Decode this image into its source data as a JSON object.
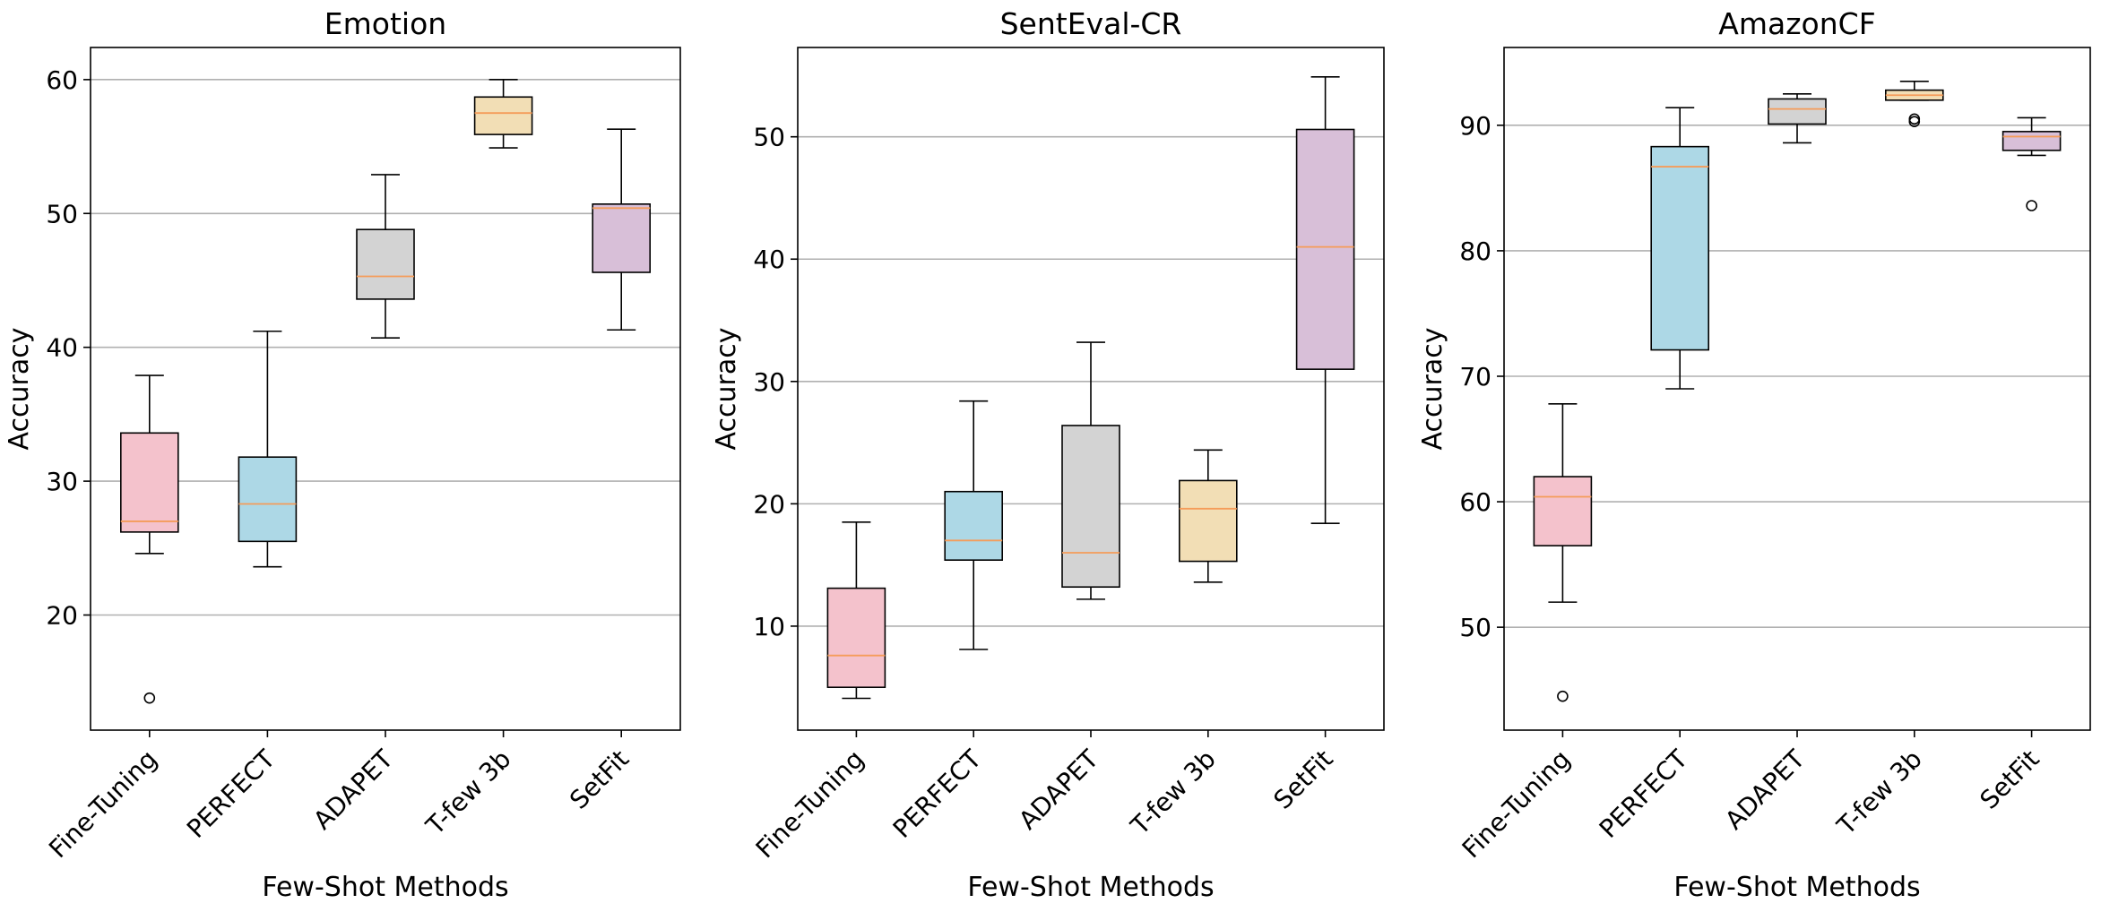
{
  "chart_data": [
    {
      "type": "box",
      "title": "Emotion",
      "xlabel": "Few-Shot Methods",
      "ylabel": "Accuracy",
      "ylim": [
        11.4,
        62.4
      ],
      "yticks": [
        20,
        30,
        40,
        50,
        60
      ],
      "grid": "horizontal",
      "categories": [
        "Fine-Tuning",
        "PERFECT",
        "ADAPET",
        "T-few 3b",
        "SetFit"
      ],
      "colors": [
        "#f4c2cc",
        "#add8e6",
        "#d3d3d3",
        "#f2deb5",
        "#d8bfd8"
      ],
      "median_color": "#f59c5a",
      "boxes": [
        {
          "whislo": 24.6,
          "q1": 26.2,
          "med": 27.0,
          "q3": 33.6,
          "whishi": 37.9,
          "fliers": [
            13.8
          ]
        },
        {
          "whislo": 23.6,
          "q1": 25.5,
          "med": 28.3,
          "q3": 31.8,
          "whishi": 41.2,
          "fliers": []
        },
        {
          "whislo": 40.7,
          "q1": 43.6,
          "med": 45.3,
          "q3": 48.8,
          "whishi": 52.9,
          "fliers": []
        },
        {
          "whislo": 54.9,
          "q1": 55.9,
          "med": 57.5,
          "q3": 58.7,
          "whishi": 60.0,
          "fliers": []
        },
        {
          "whislo": 41.3,
          "q1": 45.6,
          "med": 50.4,
          "q3": 50.7,
          "whishi": 56.3,
          "fliers": []
        }
      ]
    },
    {
      "type": "box",
      "title": "SentEval-CR",
      "xlabel": "Few-Shot Methods",
      "ylabel": "Accuracy",
      "ylim": [
        1.5,
        57.3
      ],
      "yticks": [
        10,
        20,
        30,
        40,
        50
      ],
      "grid": "horizontal",
      "categories": [
        "Fine-Tuning",
        "PERFECT",
        "ADAPET",
        "T-few 3b",
        "SetFit"
      ],
      "colors": [
        "#f4c2cc",
        "#add8e6",
        "#d3d3d3",
        "#f2deb5",
        "#d8bfd8"
      ],
      "median_color": "#f59c5a",
      "boxes": [
        {
          "whislo": 4.1,
          "q1": 5.0,
          "med": 7.6,
          "q3": 13.1,
          "whishi": 18.5,
          "fliers": []
        },
        {
          "whislo": 8.1,
          "q1": 15.4,
          "med": 17.0,
          "q3": 21.0,
          "whishi": 28.4,
          "fliers": []
        },
        {
          "whislo": 12.2,
          "q1": 13.2,
          "med": 16.0,
          "q3": 26.4,
          "whishi": 33.2,
          "fliers": []
        },
        {
          "whislo": 13.6,
          "q1": 15.3,
          "med": 19.6,
          "q3": 21.9,
          "whishi": 24.4,
          "fliers": []
        },
        {
          "whislo": 18.4,
          "q1": 31.0,
          "med": 41.0,
          "q3": 50.6,
          "whishi": 54.9,
          "fliers": []
        }
      ]
    },
    {
      "type": "box",
      "title": "AmazonCF",
      "xlabel": "Few-Shot Methods",
      "ylabel": "Accuracy",
      "ylim": [
        41.8,
        96.2
      ],
      "yticks": [
        50,
        60,
        70,
        80,
        90
      ],
      "grid": "horizontal",
      "categories": [
        "Fine-Tuning",
        "PERFECT",
        "ADAPET",
        "T-few 3b",
        "SetFit"
      ],
      "colors": [
        "#f4c2cc",
        "#add8e6",
        "#d3d3d3",
        "#f2deb5",
        "#d8bfd8"
      ],
      "median_color": "#f59c5a",
      "boxes": [
        {
          "whislo": 52.0,
          "q1": 56.5,
          "med": 60.4,
          "q3": 62.0,
          "whishi": 67.8,
          "fliers": [
            44.5
          ]
        },
        {
          "whislo": 69.0,
          "q1": 72.1,
          "med": 86.7,
          "q3": 88.3,
          "whishi": 91.4,
          "fliers": []
        },
        {
          "whislo": 88.6,
          "q1": 90.1,
          "med": 91.3,
          "q3": 92.1,
          "whishi": 92.5,
          "fliers": []
        },
        {
          "whislo": 92.0,
          "q1": 92.0,
          "med": 92.4,
          "q3": 92.8,
          "whishi": 93.5,
          "fliers": [
            90.3,
            90.5
          ]
        },
        {
          "whislo": 87.6,
          "q1": 88.0,
          "med": 89.1,
          "q3": 89.5,
          "whishi": 90.6,
          "fliers": [
            83.6
          ]
        }
      ]
    }
  ]
}
